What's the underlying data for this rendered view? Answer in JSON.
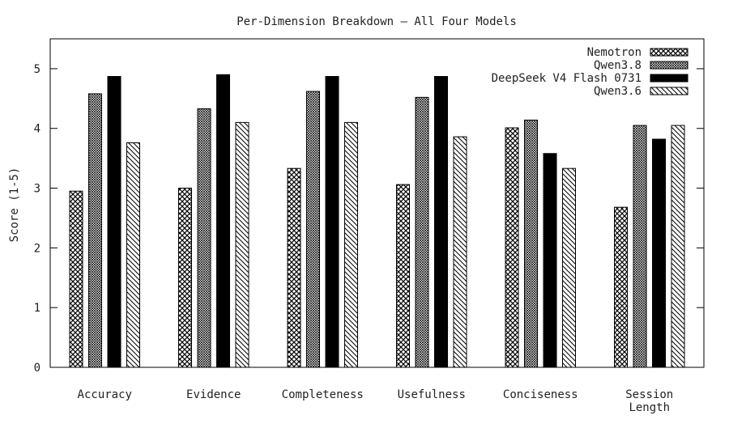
{
  "chart_data": {
    "type": "bar",
    "title": "Per-Dimension Breakdown — All Four Models",
    "xlabel": "",
    "ylabel": "Score (1-5)",
    "ylim": [
      0,
      5.5
    ],
    "yticks": [
      0,
      1,
      2,
      3,
      4,
      5
    ],
    "grid": false,
    "legend_position": "top-right",
    "categories": [
      [
        "Accuracy"
      ],
      [
        "Evidence"
      ],
      [
        "Completeness"
      ],
      [
        "Usefulness"
      ],
      [
        "Conciseness"
      ],
      [
        "Session",
        "Length"
      ]
    ],
    "series": [
      {
        "name": "Nemotron",
        "pattern": "crosshatch-large",
        "values": [
          2.95,
          3.0,
          3.33,
          3.06,
          4.01,
          2.68
        ]
      },
      {
        "name": "Qwen3.8",
        "pattern": "crosshatch-fine",
        "values": [
          4.58,
          4.33,
          4.62,
          4.52,
          4.14,
          4.05
        ]
      },
      {
        "name": "DeepSeek V4 Flash 0731",
        "pattern": "solid-black",
        "values": [
          4.87,
          4.9,
          4.87,
          4.87,
          3.58,
          3.82
        ]
      },
      {
        "name": "Qwen3.6",
        "pattern": "diagonal-lines",
        "values": [
          3.76,
          4.1,
          4.1,
          3.86,
          3.33,
          4.05
        ]
      }
    ]
  }
}
